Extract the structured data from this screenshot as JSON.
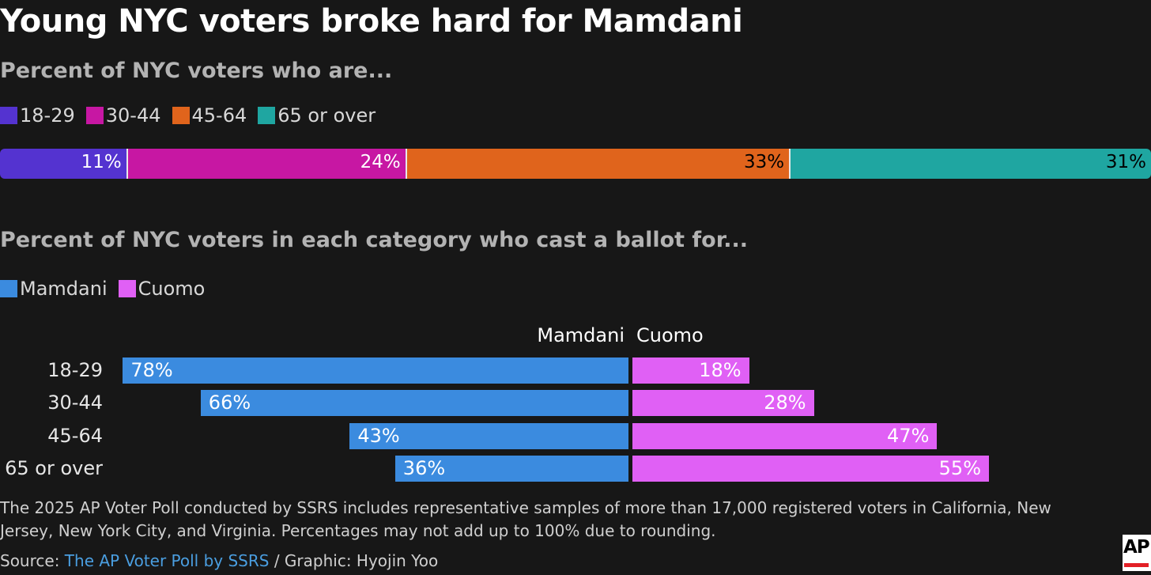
{
  "title": "Young NYC voters broke hard for Mamdani",
  "subtitle1": "Percent of NYC voters who are...",
  "subtitle2": "Percent of NYC voters in each category who cast a ballot for...",
  "legend1": [
    {
      "label": "18-29",
      "color": "#5433d0"
    },
    {
      "label": "30-44",
      "color": "#c717a3"
    },
    {
      "label": "45-64",
      "color": "#e0641c"
    },
    {
      "label": "65 or over",
      "color": "#1fa6a1"
    }
  ],
  "legend2": [
    {
      "label": "Mamdani",
      "color": "#3b8bdf"
    },
    {
      "label": "Cuomo",
      "color": "#e060f5"
    }
  ],
  "column_heads": {
    "mamdani": "Mamdani",
    "cuomo": "Cuomo"
  },
  "chart_data": [
    {
      "type": "bar",
      "orientation": "horizontal-stacked",
      "title": "Percent of NYC voters who are...",
      "categories": [
        "18-29",
        "30-44",
        "45-64",
        "65 or over"
      ],
      "values": [
        11,
        24,
        33,
        31
      ],
      "labels": [
        "11%",
        "24%",
        "33%",
        "31%"
      ],
      "colors": [
        "#5433d0",
        "#c717a3",
        "#e0641c",
        "#1fa6a1"
      ],
      "label_colors": [
        "#ffffff",
        "#ffffff",
        "#000000",
        "#000000"
      ]
    },
    {
      "type": "bar",
      "orientation": "horizontal-diverging",
      "title": "Percent of NYC voters in each category who cast a ballot for...",
      "categories": [
        "18-29",
        "30-44",
        "45-64",
        "65 or over"
      ],
      "series": [
        {
          "name": "Mamdani",
          "values": [
            78,
            66,
            43,
            36
          ],
          "labels": [
            "78%",
            "66%",
            "43%",
            "36%"
          ],
          "color": "#3b8bdf"
        },
        {
          "name": "Cuomo",
          "values": [
            18,
            28,
            47,
            55
          ],
          "labels": [
            "18%",
            "28%",
            "47%",
            "55%"
          ],
          "color": "#e060f5"
        }
      ],
      "legend": "top-left"
    }
  ],
  "note": "The 2025 AP Voter Poll conducted by SSRS includes representative samples of more than 17,000 registered voters in California, New Jersey, New York City, and Virginia. Percentages may not add up to 100% due to rounding.",
  "source": {
    "prefix": "Source: ",
    "link": "The AP Voter Poll by SSRS",
    "suffix": " / Graphic: Hyojin Yoo"
  },
  "logo": "AP"
}
